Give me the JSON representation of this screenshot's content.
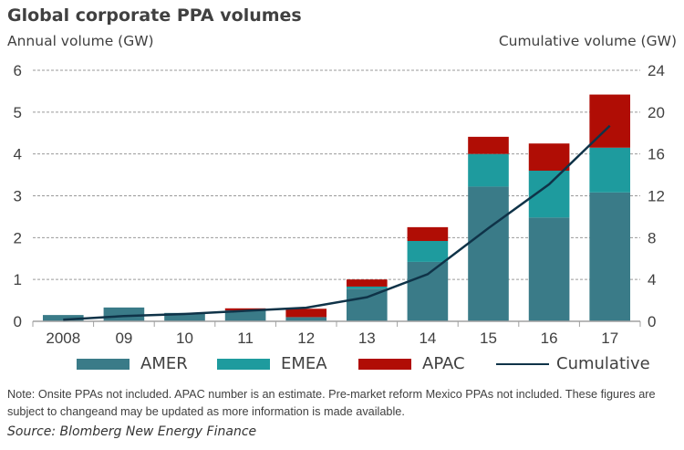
{
  "chart_data": {
    "type": "bar",
    "stacked": true,
    "title": "Global corporate PPA volumes",
    "ylabel": "Annual volume (GW)",
    "y2label": "Cumulative volume (GW)",
    "xlabel": "",
    "categories": [
      "2008",
      "09",
      "10",
      "11",
      "12",
      "13",
      "14",
      "15",
      "16",
      "17"
    ],
    "ylim": [
      0,
      6
    ],
    "yticks": [
      0,
      1,
      2,
      3,
      4,
      5,
      6
    ],
    "y2lim": [
      0,
      24
    ],
    "y2ticks": [
      0,
      4,
      8,
      12,
      16,
      20,
      24
    ],
    "grid": true,
    "series": [
      {
        "name": "AMER",
        "color": "#3a7b88",
        "values": [
          0.15,
          0.33,
          0.2,
          0.26,
          0.1,
          0.78,
          1.42,
          3.22,
          2.48,
          3.08
        ]
      },
      {
        "name": "EMEA",
        "color": "#1e9b9e",
        "values": [
          0.0,
          0.0,
          0.0,
          0.0,
          0.0,
          0.05,
          0.5,
          0.78,
          1.12,
          1.07
        ]
      },
      {
        "name": "APAC",
        "color": "#b00d05",
        "values": [
          0.0,
          0.0,
          0.0,
          0.05,
          0.2,
          0.17,
          0.33,
          0.41,
          0.65,
          1.27
        ]
      }
    ],
    "line_series": {
      "name": "Cumulative",
      "color": "#0f3348",
      "axis": "right",
      "values": [
        0.15,
        0.5,
        0.7,
        1.0,
        1.3,
        2.3,
        4.5,
        8.9,
        13.1,
        18.7
      ]
    },
    "legend": [
      "AMER",
      "EMEA",
      "APAC",
      "Cumulative"
    ],
    "legend_position": "bottom"
  },
  "note": "Note: Onsite PPAs not included. APAC number is an estimate. Pre-market reform Mexico PPAs not included. These figures are subject to changeand may be updated as more information is made available.",
  "source": "Source: Blomberg New Energy Finance"
}
